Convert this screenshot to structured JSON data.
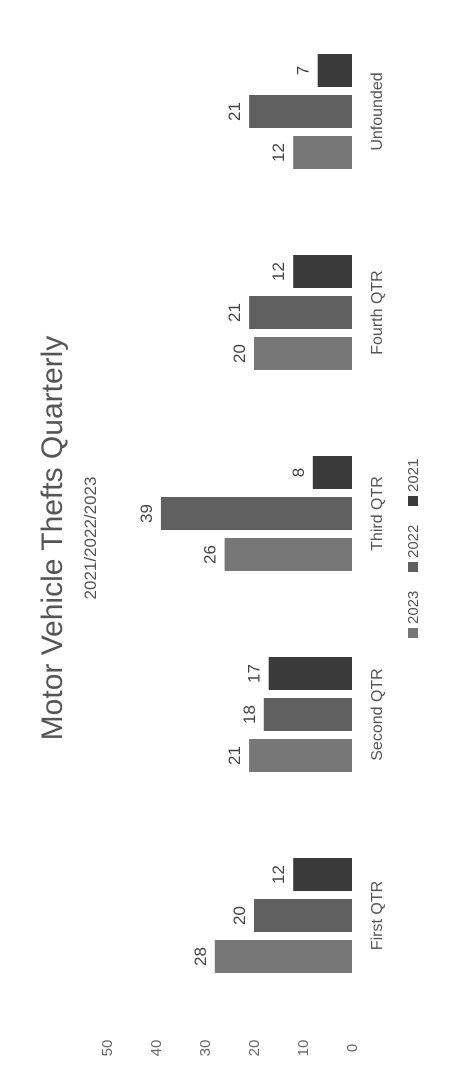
{
  "chart_data": {
    "type": "bar",
    "title": "Motor Vehicle Thefts Quarterly",
    "subtitle": "2021/2022/2023",
    "categories": [
      "First QTR",
      "Second QTR",
      "Third QTR",
      "Fourth QTR",
      "Unfounded"
    ],
    "series": [
      {
        "name": "2023",
        "values": [
          28,
          21,
          26,
          20,
          12
        ],
        "color": "#777777"
      },
      {
        "name": "2022",
        "values": [
          20,
          18,
          39,
          21,
          21
        ],
        "color": "#606060"
      },
      {
        "name": "2021",
        "values": [
          12,
          17,
          8,
          12,
          7
        ],
        "color": "#3a3a3a"
      }
    ],
    "ylim": [
      0,
      50
    ],
    "yticks": [
      0,
      10,
      20,
      30,
      40,
      50
    ],
    "grid": false,
    "legend_position": "bottom",
    "orientation": "rotated 90 degrees counter-clockwise"
  }
}
